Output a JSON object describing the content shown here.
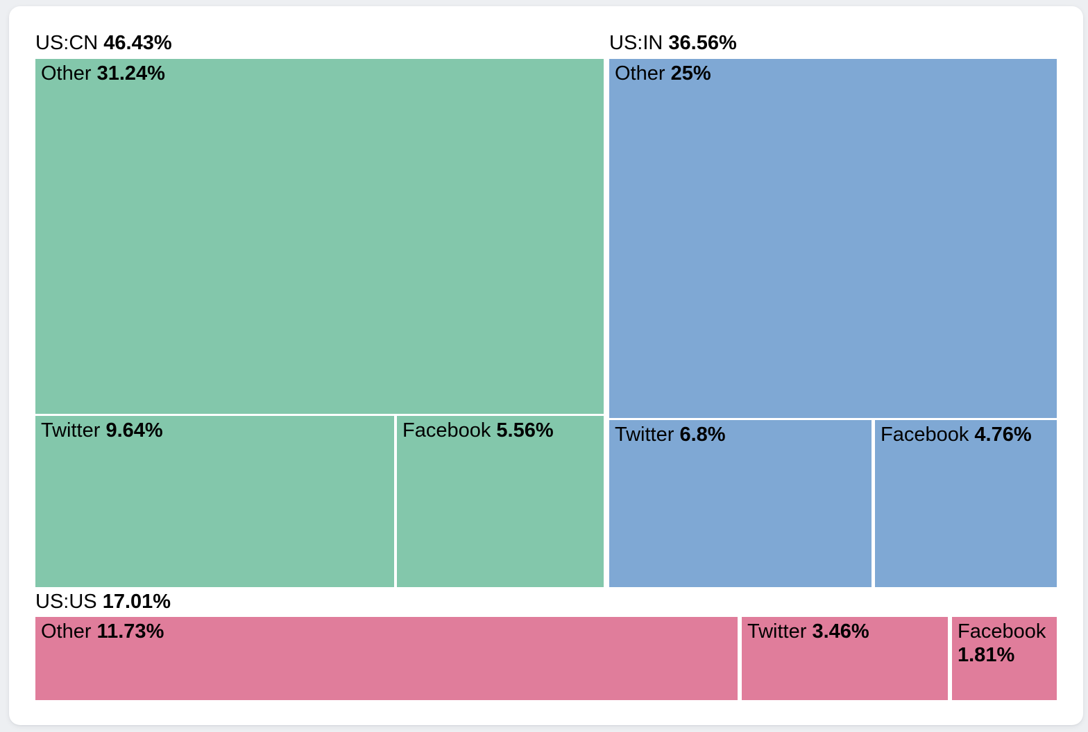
{
  "page": {
    "background_color": "#edeff2",
    "card_background_color": "#ffffff",
    "text_color": "#000000"
  },
  "chart_data": {
    "type": "treemap",
    "unit": "%",
    "legend": "none",
    "groups": [
      {
        "label": "US:CN",
        "value": 46.43,
        "display": "46.43%",
        "color": "#83c7ab",
        "children": [
          {
            "name": "Other",
            "value": 31.24,
            "display": "31.24%"
          },
          {
            "name": "Twitter",
            "value": 9.64,
            "display": "9.64%"
          },
          {
            "name": "Facebook",
            "value": 5.56,
            "display": "5.56%"
          }
        ]
      },
      {
        "label": "US:IN",
        "value": 36.56,
        "display": "36.56%",
        "color": "#7fa8d4",
        "children": [
          {
            "name": "Other",
            "value": 25,
            "display": "25%"
          },
          {
            "name": "Twitter",
            "value": 6.8,
            "display": "6.8%"
          },
          {
            "name": "Facebook",
            "value": 4.76,
            "display": "4.76%"
          }
        ]
      },
      {
        "label": "US:US",
        "value": 17.01,
        "display": "17.01%",
        "color": "#e07d9b",
        "children": [
          {
            "name": "Other",
            "value": 11.73,
            "display": "11.73%"
          },
          {
            "name": "Twitter",
            "value": 3.46,
            "display": "3.46%"
          },
          {
            "name": "Facebook",
            "value": 1.81,
            "display": "1.81%"
          }
        ]
      }
    ]
  }
}
